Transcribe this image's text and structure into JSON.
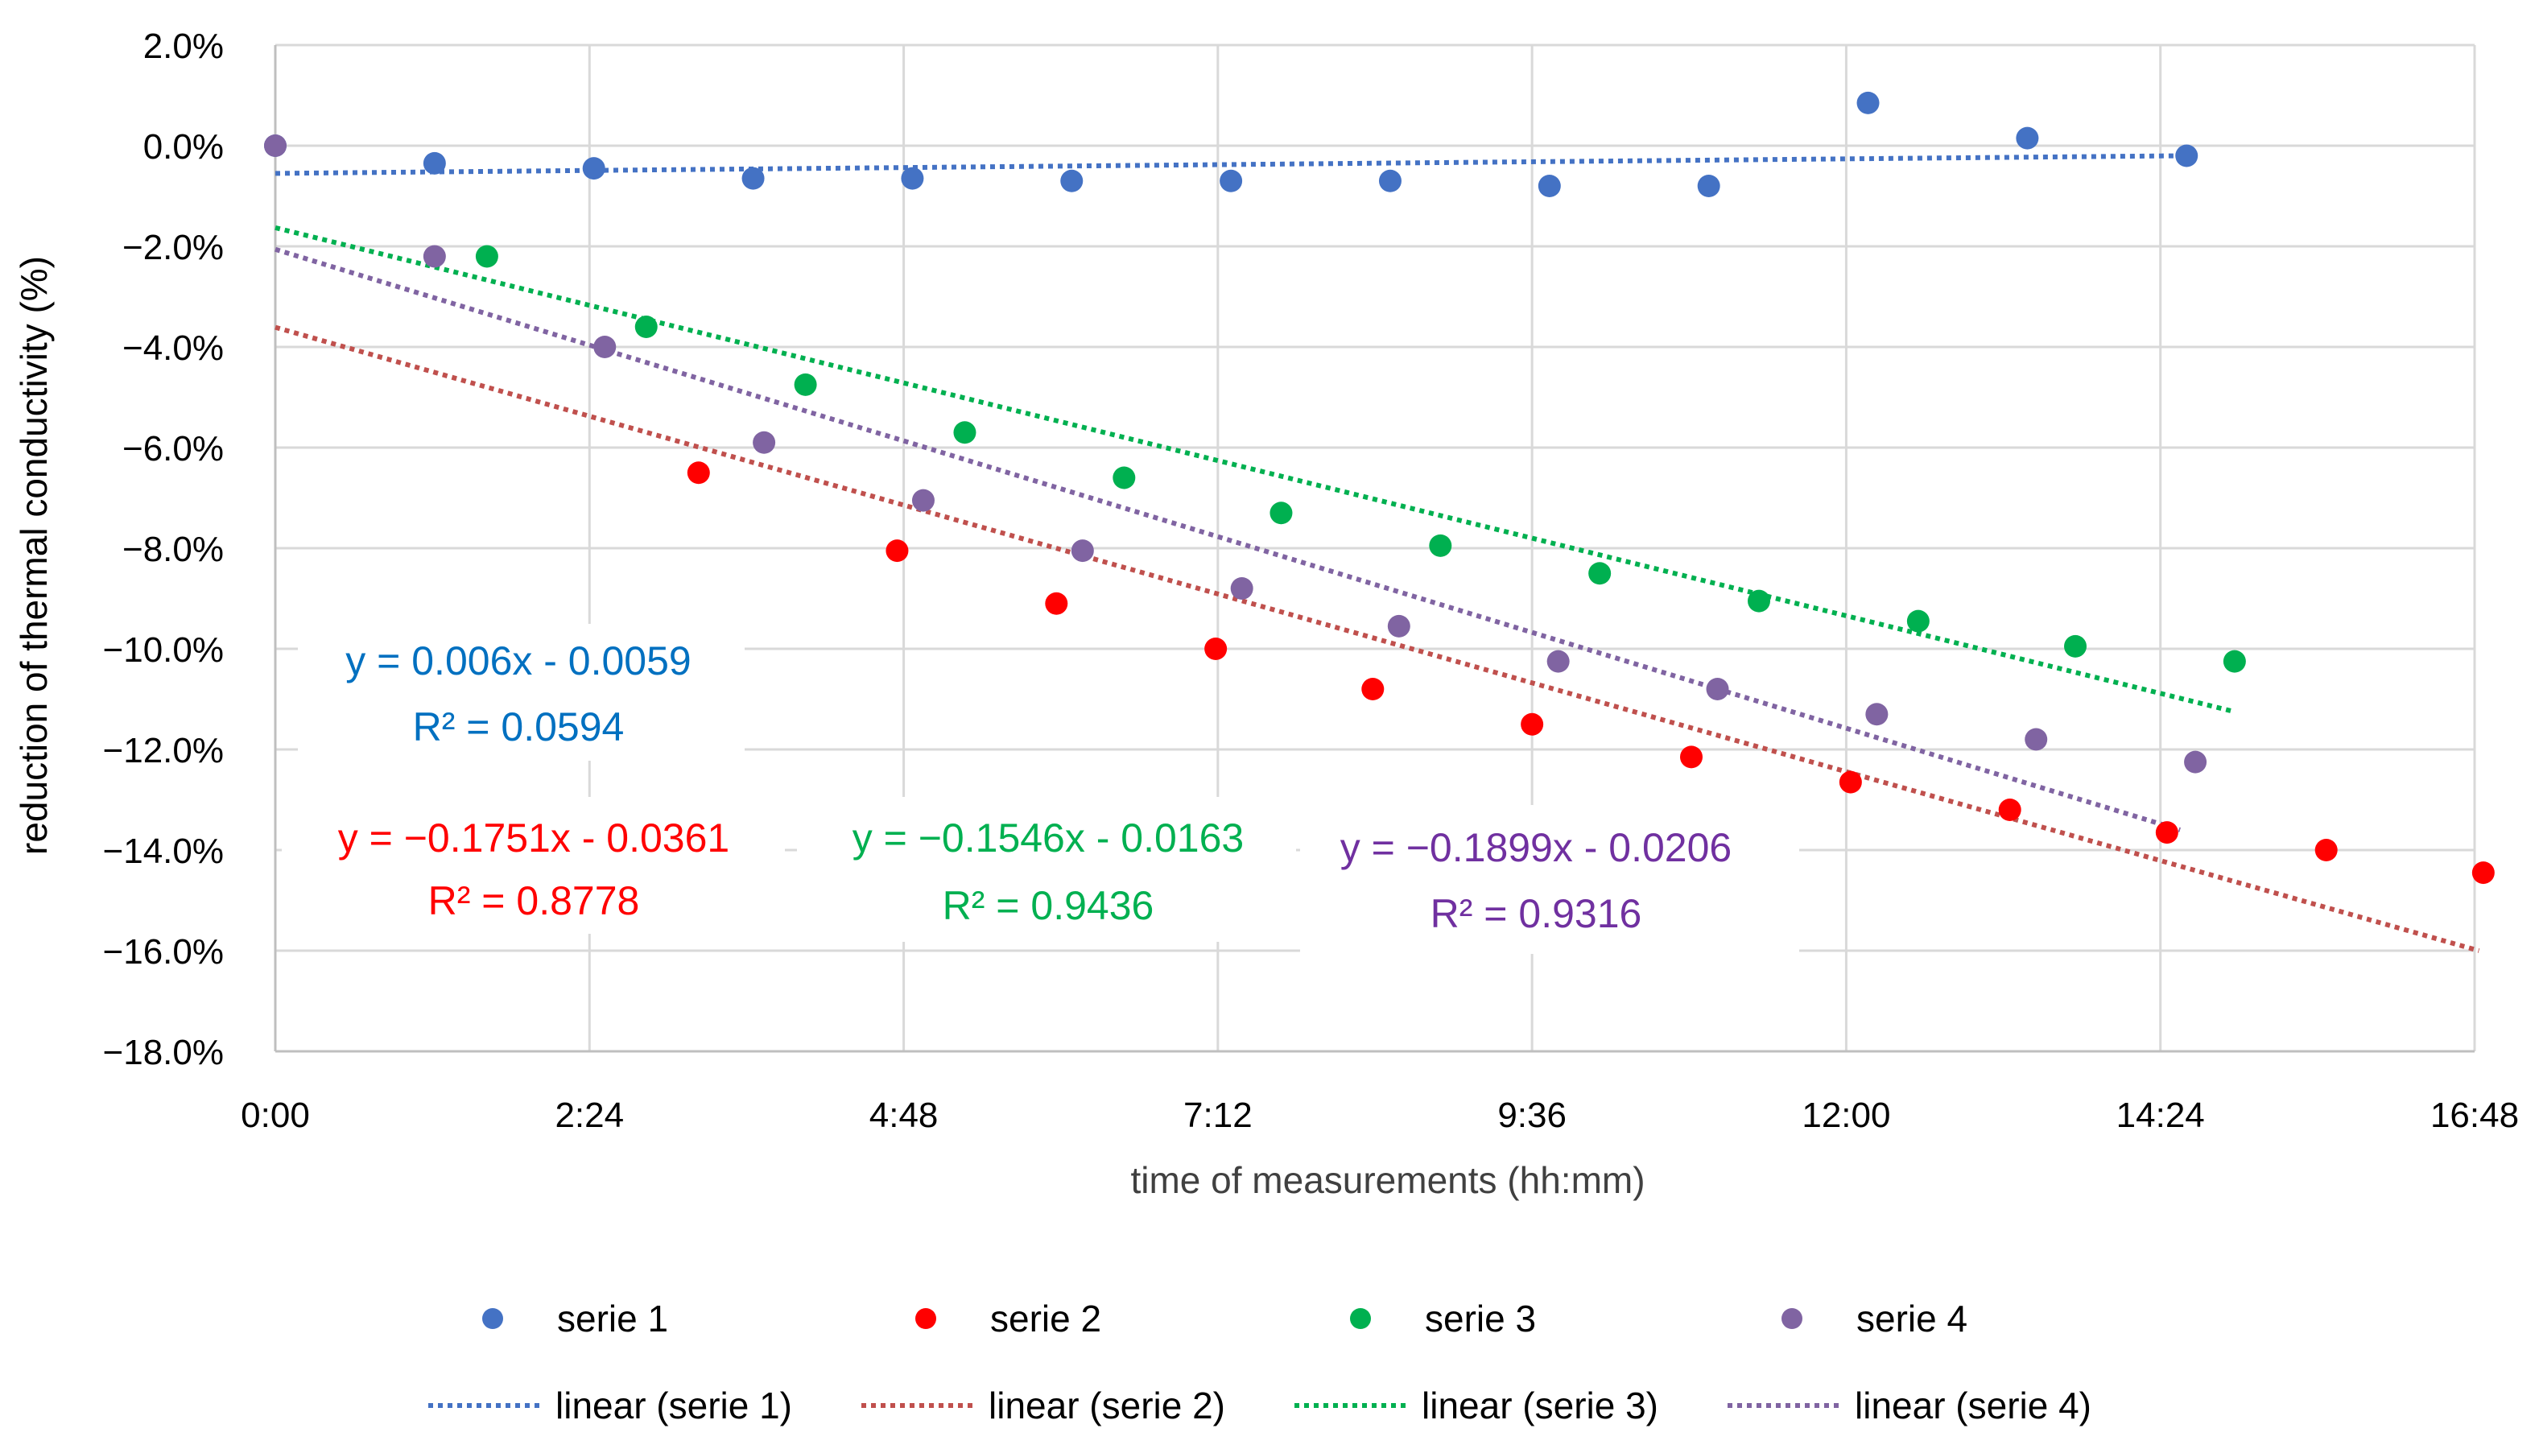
{
  "chart_data": {
    "type": "scatter",
    "title": "",
    "xlabel": "time of measurements (hh:mm)",
    "ylabel": "reduction of thermal conductivity (%)",
    "xlim": [
      0,
      1008
    ],
    "ylim": [
      -18,
      2
    ],
    "x_unit": "minutes",
    "x_ticks": [
      0,
      144,
      288,
      432,
      576,
      720,
      864,
      1008
    ],
    "x_tick_labels": [
      "0:00",
      "2:24",
      "4:48",
      "7:12",
      "9:36",
      "12:00",
      "14:24",
      "16:48"
    ],
    "y_ticks": [
      2,
      0,
      -2,
      -4,
      -6,
      -8,
      -10,
      -12,
      -14,
      -16,
      -18
    ],
    "y_tick_labels": [
      "2.0%",
      "0.0%",
      "−2.0%",
      "−4.0%",
      "−6.0%",
      "−8.0%",
      "−10.0%",
      "−12.0%",
      "−14.0%",
      "−16.0%",
      "−18.0%"
    ],
    "grid": true,
    "legend_position": "bottom",
    "series": [
      {
        "name": "serie 1",
        "color": "#4472C4",
        "x": [
          0,
          73,
          146,
          219,
          292,
          365,
          438,
          511,
          584,
          657,
          730,
          803,
          876
        ],
        "y": [
          0.0,
          -0.35,
          -0.45,
          -0.65,
          -0.65,
          -0.7,
          -0.7,
          -0.7,
          -0.8,
          -0.8,
          0.85,
          0.15,
          -0.2
        ]
      },
      {
        "name": "serie 2",
        "color": "#FF0000",
        "x": [
          194,
          285,
          358,
          431,
          503,
          576,
          649,
          722,
          795,
          867,
          940,
          1012
        ],
        "y": [
          -6.5,
          -8.05,
          -9.1,
          -10.0,
          -10.8,
          -11.5,
          -12.15,
          -12.65,
          -13.2,
          -13.65,
          -14.0,
          -14.45
        ]
      },
      {
        "name": "serie 3",
        "color": "#00B050",
        "x": [
          97,
          170,
          243,
          316,
          389,
          461,
          534,
          607,
          680,
          753,
          825,
          898
        ],
        "y": [
          -2.2,
          -3.6,
          -4.75,
          -5.7,
          -6.6,
          -7.3,
          -7.95,
          -8.5,
          -9.05,
          -9.45,
          -9.95,
          -10.25
        ]
      },
      {
        "name": "serie 4",
        "color": "#8064A2",
        "x": [
          0,
          73,
          151,
          224,
          297,
          370,
          443,
          515,
          588,
          661,
          734,
          807,
          880
        ],
        "y": [
          0.0,
          -2.2,
          -4.0,
          -5.9,
          -7.05,
          -8.05,
          -8.8,
          -9.55,
          -10.25,
          -10.8,
          -11.3,
          -11.8,
          -12.25
        ]
      }
    ],
    "trendlines": [
      {
        "name": "linear (serie 1)",
        "color": "#4472C4",
        "x": [
          0,
          873
        ],
        "y": [
          -0.55,
          -0.2
        ]
      },
      {
        "name": "linear (serie 2)",
        "color": "#C0504D",
        "x": [
          0,
          1010
        ],
        "y": [
          -3.61,
          -16.0
        ]
      },
      {
        "name": "linear (serie 3)",
        "color": "#00B050",
        "x": [
          0,
          898
        ],
        "y": [
          -1.63,
          -11.25
        ]
      },
      {
        "name": "linear (serie 4)",
        "color": "#8064A2",
        "x": [
          0,
          873
        ],
        "y": [
          -2.06,
          -13.6
        ]
      }
    ],
    "annotations": [
      {
        "series": "serie 1",
        "color": "#0070C0",
        "equation": "y = 0.006x - 0.0059",
        "r2": "R² = 0.0594"
      },
      {
        "series": "serie 2",
        "color": "#FF0000",
        "equation": "y = −0.1751x - 0.0361",
        "r2": "R² = 0.8778"
      },
      {
        "series": "serie 3",
        "color": "#00B050",
        "equation": "y = −0.1546x - 0.0163",
        "r2": "R² = 0.9436"
      },
      {
        "series": "serie 4",
        "color": "#7030A0",
        "equation": "y = −0.1899x - 0.0206",
        "r2": "R² = 0.9316"
      }
    ]
  }
}
